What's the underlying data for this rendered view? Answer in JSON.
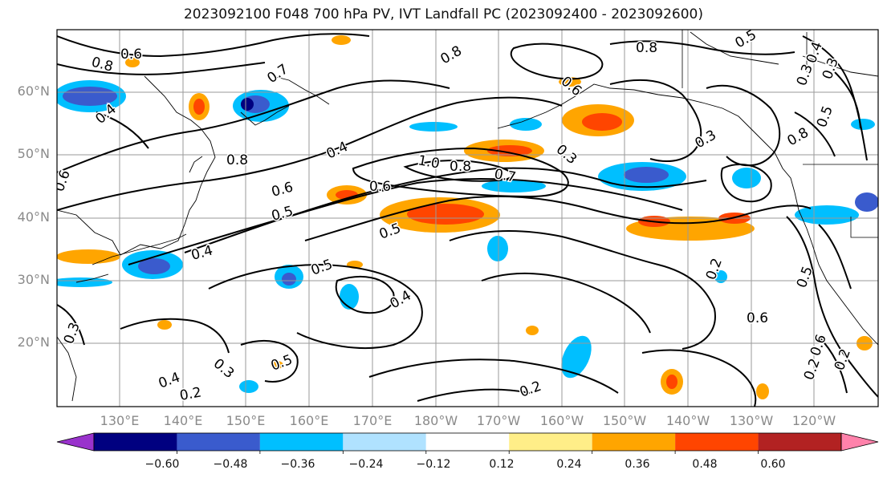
{
  "title": "2023092100 F048 700 hPa PV, IVT Landfall PC (2023092400 - 2023092600)",
  "lat_labels": [
    "60°N",
    "50°N",
    "40°N",
    "30°N",
    "20°N"
  ],
  "lon_labels": [
    "130°E",
    "140°E",
    "150°E",
    "160°E",
    "170°E",
    "180°W",
    "170°W",
    "160°W",
    "150°W",
    "140°W",
    "130°W",
    "120°W"
  ],
  "contour_labels": [
    "0.8",
    "0.6",
    "0.7",
    "0.8",
    "0.6",
    "0.8",
    "0.4",
    "0.8",
    "0.4",
    "1.0",
    "0.8",
    "0.7",
    "0.6",
    "0.6",
    "0.5",
    "0.5",
    "0.4",
    "0.5",
    "0.4",
    "0.3",
    "0.4",
    "0.2",
    "0.2",
    "0.2",
    "0.6",
    "0.5",
    "0.3",
    "0.8",
    "0.3",
    "0.6",
    "0.2",
    "0.2",
    "0.3",
    "0.4",
    "0.3",
    "0.5",
    "0.5",
    "0.5",
    "0.6",
    "0.3"
  ],
  "colorbar": {
    "ticks": [
      "−0.60",
      "−0.48",
      "−0.36",
      "−0.24",
      "−0.12",
      "0.12",
      "0.24",
      "0.36",
      "0.48",
      "0.60"
    ],
    "colors": [
      "#9932cc",
      "#000080",
      "#3a5bcd",
      "#00bfff",
      "#b0e2ff",
      "#ffffff",
      "#ffee88",
      "#ffa500",
      "#ff4500",
      "#b22222",
      "#ff82ab"
    ]
  }
}
